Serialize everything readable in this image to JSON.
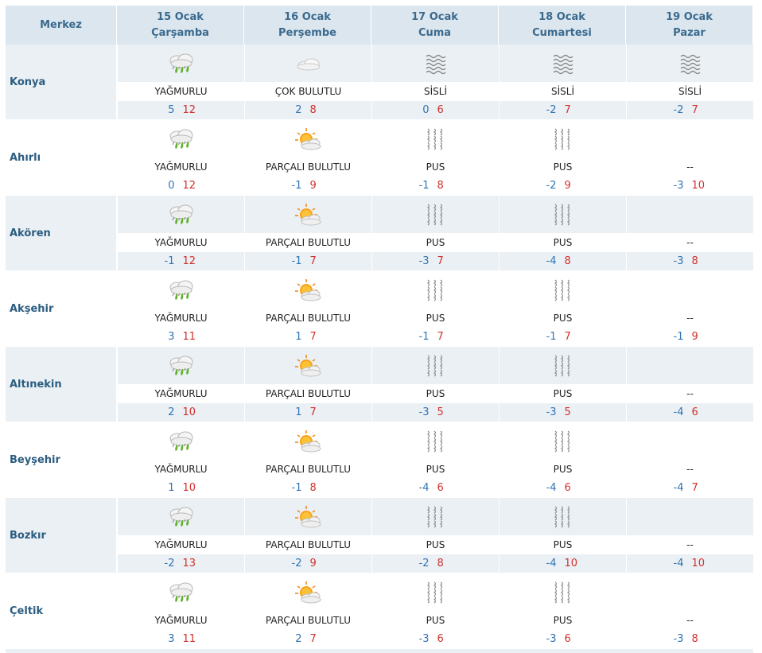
{
  "header": {
    "location": "Merkez",
    "days": [
      {
        "date": "15 Ocak",
        "weekday": "Çarşamba"
      },
      {
        "date": "16 Ocak",
        "weekday": "Perşembe"
      },
      {
        "date": "17 Ocak",
        "weekday": "Cuma"
      },
      {
        "date": "18 Ocak",
        "weekday": "Cumartesi"
      },
      {
        "date": "19 Ocak",
        "weekday": "Pazar"
      }
    ]
  },
  "colors": {
    "min_temp": "#2f74b5",
    "max_temp": "#d0312d",
    "city": "#2b5d80",
    "header_bg": "#dce6ee",
    "row_alt_bg": "#eaf0f4"
  },
  "rows": [
    {
      "city": "Konya",
      "shaded": true,
      "days": [
        {
          "icon": "rain-icon",
          "cond": "YAĞMURLU",
          "min": "5",
          "max": "12"
        },
        {
          "icon": "cloudy-icon",
          "cond": "ÇOK BULUTLU",
          "min": "2",
          "max": "8"
        },
        {
          "icon": "fog-icon",
          "cond": "SİSLİ",
          "min": "0",
          "max": "6"
        },
        {
          "icon": "fog-icon",
          "cond": "SİSLİ",
          "min": "-2",
          "max": "7"
        },
        {
          "icon": "fog-icon",
          "cond": "SİSLİ",
          "min": "-2",
          "max": "7"
        }
      ]
    },
    {
      "city": "Ahırlı",
      "shaded": false,
      "days": [
        {
          "icon": "rain-icon",
          "cond": "YAĞMURLU",
          "min": "0",
          "max": "12"
        },
        {
          "icon": "partly-cloudy-icon",
          "cond": "PARÇALI BULUTLU",
          "min": "-1",
          "max": "9"
        },
        {
          "icon": "haze-icon",
          "cond": "PUS",
          "min": "-1",
          "max": "8"
        },
        {
          "icon": "haze-icon",
          "cond": "PUS",
          "min": "-2",
          "max": "9"
        },
        {
          "icon": "none",
          "cond": "--",
          "min": "-3",
          "max": "10"
        }
      ]
    },
    {
      "city": "Akören",
      "shaded": true,
      "days": [
        {
          "icon": "rain-icon",
          "cond": "YAĞMURLU",
          "min": "-1",
          "max": "12"
        },
        {
          "icon": "partly-cloudy-icon",
          "cond": "PARÇALI BULUTLU",
          "min": "-1",
          "max": "7"
        },
        {
          "icon": "haze-icon",
          "cond": "PUS",
          "min": "-3",
          "max": "7"
        },
        {
          "icon": "haze-icon",
          "cond": "PUS",
          "min": "-4",
          "max": "8"
        },
        {
          "icon": "none",
          "cond": "--",
          "min": "-3",
          "max": "8"
        }
      ]
    },
    {
      "city": "Akşehir",
      "shaded": false,
      "days": [
        {
          "icon": "rain-icon",
          "cond": "YAĞMURLU",
          "min": "3",
          "max": "11"
        },
        {
          "icon": "partly-cloudy-icon",
          "cond": "PARÇALI BULUTLU",
          "min": "1",
          "max": "7"
        },
        {
          "icon": "haze-icon",
          "cond": "PUS",
          "min": "-1",
          "max": "7"
        },
        {
          "icon": "haze-icon",
          "cond": "PUS",
          "min": "-1",
          "max": "7"
        },
        {
          "icon": "none",
          "cond": "--",
          "min": "-1",
          "max": "9"
        }
      ]
    },
    {
      "city": "Altınekin",
      "shaded": true,
      "days": [
        {
          "icon": "rain-icon",
          "cond": "YAĞMURLU",
          "min": "2",
          "max": "10"
        },
        {
          "icon": "partly-cloudy-icon",
          "cond": "PARÇALI BULUTLU",
          "min": "1",
          "max": "7"
        },
        {
          "icon": "haze-icon",
          "cond": "PUS",
          "min": "-3",
          "max": "5"
        },
        {
          "icon": "haze-icon",
          "cond": "PUS",
          "min": "-3",
          "max": "5"
        },
        {
          "icon": "none",
          "cond": "--",
          "min": "-4",
          "max": "6"
        }
      ]
    },
    {
      "city": "Beyşehir",
      "shaded": false,
      "days": [
        {
          "icon": "rain-icon",
          "cond": "YAĞMURLU",
          "min": "1",
          "max": "10"
        },
        {
          "icon": "partly-cloudy-icon",
          "cond": "PARÇALI BULUTLU",
          "min": "-1",
          "max": "8"
        },
        {
          "icon": "haze-icon",
          "cond": "PUS",
          "min": "-4",
          "max": "6"
        },
        {
          "icon": "haze-icon",
          "cond": "PUS",
          "min": "-4",
          "max": "6"
        },
        {
          "icon": "none",
          "cond": "--",
          "min": "-4",
          "max": "7"
        }
      ]
    },
    {
      "city": "Bozkır",
      "shaded": true,
      "days": [
        {
          "icon": "rain-icon",
          "cond": "YAĞMURLU",
          "min": "-2",
          "max": "13"
        },
        {
          "icon": "partly-cloudy-icon",
          "cond": "PARÇALI BULUTLU",
          "min": "-2",
          "max": "9"
        },
        {
          "icon": "haze-icon",
          "cond": "PUS",
          "min": "-2",
          "max": "8"
        },
        {
          "icon": "haze-icon",
          "cond": "PUS",
          "min": "-4",
          "max": "10"
        },
        {
          "icon": "none",
          "cond": "--",
          "min": "-4",
          "max": "10"
        }
      ]
    },
    {
      "city": "Çeltik",
      "shaded": false,
      "days": [
        {
          "icon": "rain-icon",
          "cond": "YAĞMURLU",
          "min": "3",
          "max": "11"
        },
        {
          "icon": "partly-cloudy-icon",
          "cond": "PARÇALI BULUTLU",
          "min": "2",
          "max": "7"
        },
        {
          "icon": "haze-icon",
          "cond": "PUS",
          "min": "-3",
          "max": "6"
        },
        {
          "icon": "haze-icon",
          "cond": "PUS",
          "min": "-3",
          "max": "6"
        },
        {
          "icon": "none",
          "cond": "--",
          "min": "-3",
          "max": "8"
        }
      ]
    }
  ]
}
